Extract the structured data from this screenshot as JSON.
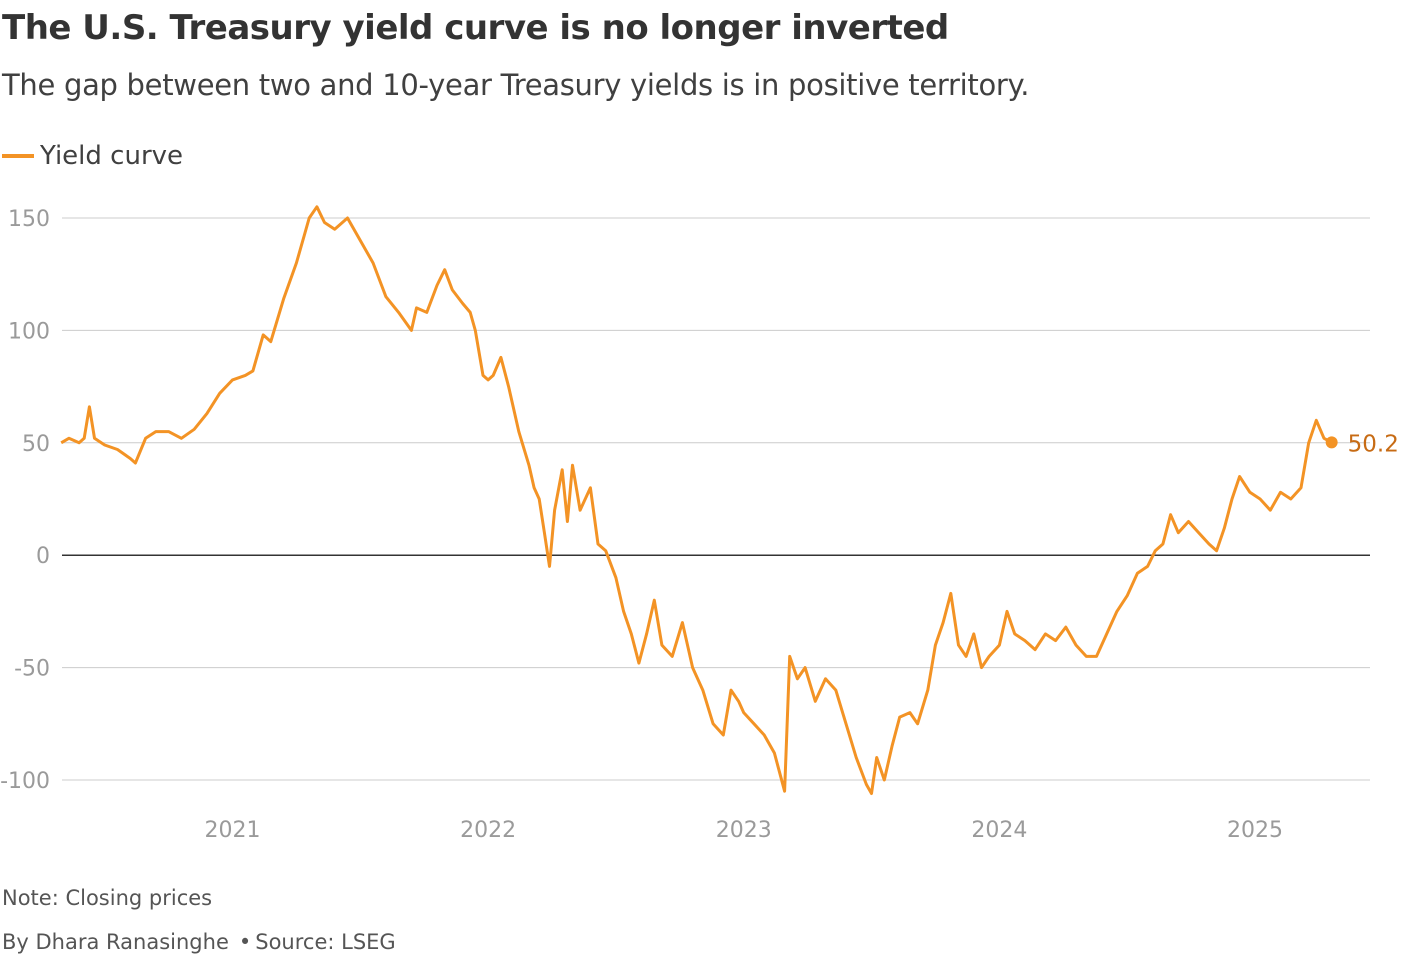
{
  "title": "The U.S. Treasury yield curve is no longer inverted",
  "subtitle": "The gap between two and 10-year Treasury yields is in positive territory.",
  "note": "Note: Closing prices",
  "byline": "By Dhara Ranasinghe",
  "separator": "•",
  "source": "Source: LSEG",
  "colors": {
    "series": "#f39325",
    "end_label": "#c76b14",
    "grid": "#cccccc",
    "zero_line": "#333333",
    "axis_text": "#9a9a9a"
  },
  "chart_data": {
    "type": "line",
    "title": "The U.S. Treasury yield curve is no longer inverted",
    "subtitle": "The gap between two and 10-year Treasury yields is in positive territory.",
    "xlabel": "",
    "ylabel": "",
    "xlim": [
      2020.333,
      2025.45
    ],
    "ylim": [
      -110,
      160
    ],
    "y_ticks": [
      {
        "value": 150,
        "label": "150"
      },
      {
        "value": 100,
        "label": "100"
      },
      {
        "value": 50,
        "label": "50"
      },
      {
        "value": 0,
        "label": "0"
      },
      {
        "value": -50,
        "label": "-50"
      },
      {
        "value": -100,
        "label": "-100"
      }
    ],
    "x_ticks": [
      {
        "value": 2021,
        "label": "2021"
      },
      {
        "value": 2022,
        "label": "2022"
      },
      {
        "value": 2023,
        "label": "2023"
      },
      {
        "value": 2024,
        "label": "2024"
      },
      {
        "value": 2025,
        "label": "2025"
      }
    ],
    "grid": "horizontal",
    "legend_position": "top-left",
    "series": [
      {
        "name": "Yield curve",
        "end_label": "50.2",
        "points": [
          [
            2020.33,
            50
          ],
          [
            2020.36,
            52
          ],
          [
            2020.4,
            50
          ],
          [
            2020.42,
            52
          ],
          [
            2020.44,
            66
          ],
          [
            2020.46,
            52
          ],
          [
            2020.5,
            49
          ],
          [
            2020.55,
            47
          ],
          [
            2020.6,
            43
          ],
          [
            2020.62,
            41
          ],
          [
            2020.66,
            52
          ],
          [
            2020.7,
            55
          ],
          [
            2020.75,
            55
          ],
          [
            2020.8,
            52
          ],
          [
            2020.85,
            56
          ],
          [
            2020.9,
            63
          ],
          [
            2020.95,
            72
          ],
          [
            2021.0,
            78
          ],
          [
            2021.05,
            80
          ],
          [
            2021.08,
            82
          ],
          [
            2021.12,
            98
          ],
          [
            2021.15,
            95
          ],
          [
            2021.2,
            114
          ],
          [
            2021.25,
            130
          ],
          [
            2021.28,
            142
          ],
          [
            2021.3,
            150
          ],
          [
            2021.33,
            155
          ],
          [
            2021.36,
            148
          ],
          [
            2021.4,
            145
          ],
          [
            2021.45,
            150
          ],
          [
            2021.5,
            140
          ],
          [
            2021.55,
            130
          ],
          [
            2021.6,
            115
          ],
          [
            2021.65,
            108
          ],
          [
            2021.7,
            100
          ],
          [
            2021.72,
            110
          ],
          [
            2021.76,
            108
          ],
          [
            2021.8,
            120
          ],
          [
            2021.83,
            127
          ],
          [
            2021.86,
            118
          ],
          [
            2021.9,
            112
          ],
          [
            2021.93,
            108
          ],
          [
            2021.95,
            100
          ],
          [
            2021.98,
            80
          ],
          [
            2022.0,
            78
          ],
          [
            2022.02,
            80
          ],
          [
            2022.05,
            88
          ],
          [
            2022.08,
            75
          ],
          [
            2022.12,
            55
          ],
          [
            2022.16,
            40
          ],
          [
            2022.18,
            30
          ],
          [
            2022.2,
            25
          ],
          [
            2022.22,
            10
          ],
          [
            2022.24,
            -5
          ],
          [
            2022.26,
            20
          ],
          [
            2022.29,
            38
          ],
          [
            2022.31,
            15
          ],
          [
            2022.33,
            40
          ],
          [
            2022.36,
            20
          ],
          [
            2022.4,
            30
          ],
          [
            2022.43,
            5
          ],
          [
            2022.46,
            2
          ],
          [
            2022.5,
            -10
          ],
          [
            2022.53,
            -25
          ],
          [
            2022.56,
            -35
          ],
          [
            2022.59,
            -48
          ],
          [
            2022.62,
            -35
          ],
          [
            2022.65,
            -20
          ],
          [
            2022.68,
            -40
          ],
          [
            2022.72,
            -45
          ],
          [
            2022.76,
            -30
          ],
          [
            2022.8,
            -50
          ],
          [
            2022.84,
            -60
          ],
          [
            2022.88,
            -75
          ],
          [
            2022.92,
            -80
          ],
          [
            2022.95,
            -60
          ],
          [
            2022.98,
            -65
          ],
          [
            2023.0,
            -70
          ],
          [
            2023.04,
            -75
          ],
          [
            2023.08,
            -80
          ],
          [
            2023.12,
            -88
          ],
          [
            2023.16,
            -105
          ],
          [
            2023.18,
            -45
          ],
          [
            2023.21,
            -55
          ],
          [
            2023.24,
            -50
          ],
          [
            2023.28,
            -65
          ],
          [
            2023.32,
            -55
          ],
          [
            2023.36,
            -60
          ],
          [
            2023.4,
            -75
          ],
          [
            2023.44,
            -90
          ],
          [
            2023.48,
            -102
          ],
          [
            2023.5,
            -106
          ],
          [
            2023.52,
            -90
          ],
          [
            2023.55,
            -100
          ],
          [
            2023.58,
            -85
          ],
          [
            2023.61,
            -72
          ],
          [
            2023.65,
            -70
          ],
          [
            2023.68,
            -75
          ],
          [
            2023.72,
            -60
          ],
          [
            2023.75,
            -40
          ],
          [
            2023.78,
            -30
          ],
          [
            2023.81,
            -17
          ],
          [
            2023.84,
            -40
          ],
          [
            2023.87,
            -45
          ],
          [
            2023.9,
            -35
          ],
          [
            2023.93,
            -50
          ],
          [
            2023.96,
            -45
          ],
          [
            2024.0,
            -40
          ],
          [
            2024.03,
            -25
          ],
          [
            2024.06,
            -35
          ],
          [
            2024.1,
            -38
          ],
          [
            2024.14,
            -42
          ],
          [
            2024.18,
            -35
          ],
          [
            2024.22,
            -38
          ],
          [
            2024.26,
            -32
          ],
          [
            2024.3,
            -40
          ],
          [
            2024.34,
            -45
          ],
          [
            2024.38,
            -45
          ],
          [
            2024.42,
            -35
          ],
          [
            2024.46,
            -25
          ],
          [
            2024.5,
            -18
          ],
          [
            2024.54,
            -8
          ],
          [
            2024.58,
            -5
          ],
          [
            2024.61,
            2
          ],
          [
            2024.64,
            5
          ],
          [
            2024.67,
            18
          ],
          [
            2024.7,
            10
          ],
          [
            2024.74,
            15
          ],
          [
            2024.78,
            10
          ],
          [
            2024.82,
            5
          ],
          [
            2024.85,
            2
          ],
          [
            2024.88,
            12
          ],
          [
            2024.91,
            25
          ],
          [
            2024.94,
            35
          ],
          [
            2024.98,
            28
          ],
          [
            2025.02,
            25
          ],
          [
            2025.06,
            20
          ],
          [
            2025.1,
            28
          ],
          [
            2025.14,
            25
          ],
          [
            2025.18,
            30
          ],
          [
            2025.21,
            50
          ],
          [
            2025.24,
            60
          ],
          [
            2025.27,
            52
          ],
          [
            2025.3,
            50.2
          ]
        ]
      }
    ]
  }
}
